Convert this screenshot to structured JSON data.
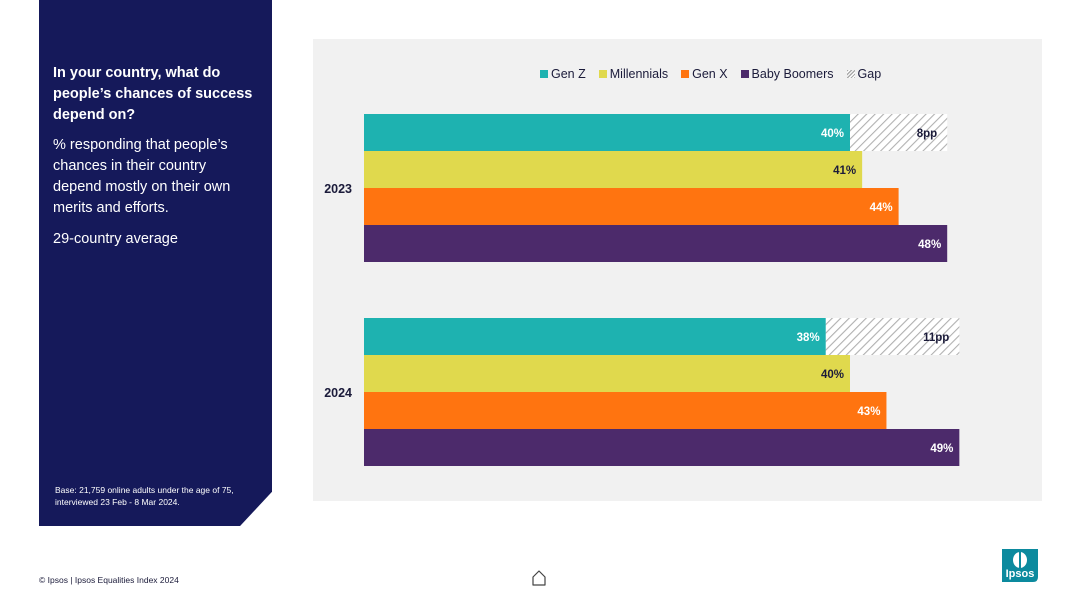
{
  "panel": {
    "question": "In your country, what do people’s chances of success depend on?",
    "description": "% responding that people’s chances in their country depend mostly on their own merits and efforts.",
    "average": "29-country average",
    "base": "Base: 21,759 online adults under the age of 75, interviewed 23 Feb - 8 Mar 2024."
  },
  "footer": {
    "copyright": "© Ipsos | Ipsos Equalities Index 2024",
    "logo_text": "Ipsos"
  },
  "colors": {
    "panel": "#15195a",
    "gen_z": "#1eb2b0",
    "millennials": "#e0d94d",
    "gen_x": "#ff7410",
    "boomers": "#4c2a6b",
    "logo": "#0c8a9e"
  },
  "chart_data": {
    "type": "bar",
    "orientation": "horizontal",
    "title": "",
    "categories": [
      "2023",
      "2024"
    ],
    "legend": [
      "Gen Z",
      "Millennials",
      "Gen X",
      "Baby Boomers",
      "Gap"
    ],
    "legend_position": "top",
    "series": [
      {
        "name": "Gen Z",
        "values": [
          40,
          38
        ],
        "labels": [
          "40%",
          "38%"
        ]
      },
      {
        "name": "Millennials",
        "values": [
          41,
          40
        ],
        "labels": [
          "41%",
          "40%"
        ]
      },
      {
        "name": "Gen X",
        "values": [
          44,
          43
        ],
        "labels": [
          "44%",
          "43%"
        ]
      },
      {
        "name": "Baby Boomers",
        "values": [
          48,
          49
        ],
        "labels": [
          "48%",
          "49%"
        ]
      }
    ],
    "gap": {
      "values": [
        8,
        11
      ],
      "labels": [
        "8pp",
        "11pp"
      ]
    },
    "xlim": [
      0,
      60
    ],
    "grid": false
  }
}
